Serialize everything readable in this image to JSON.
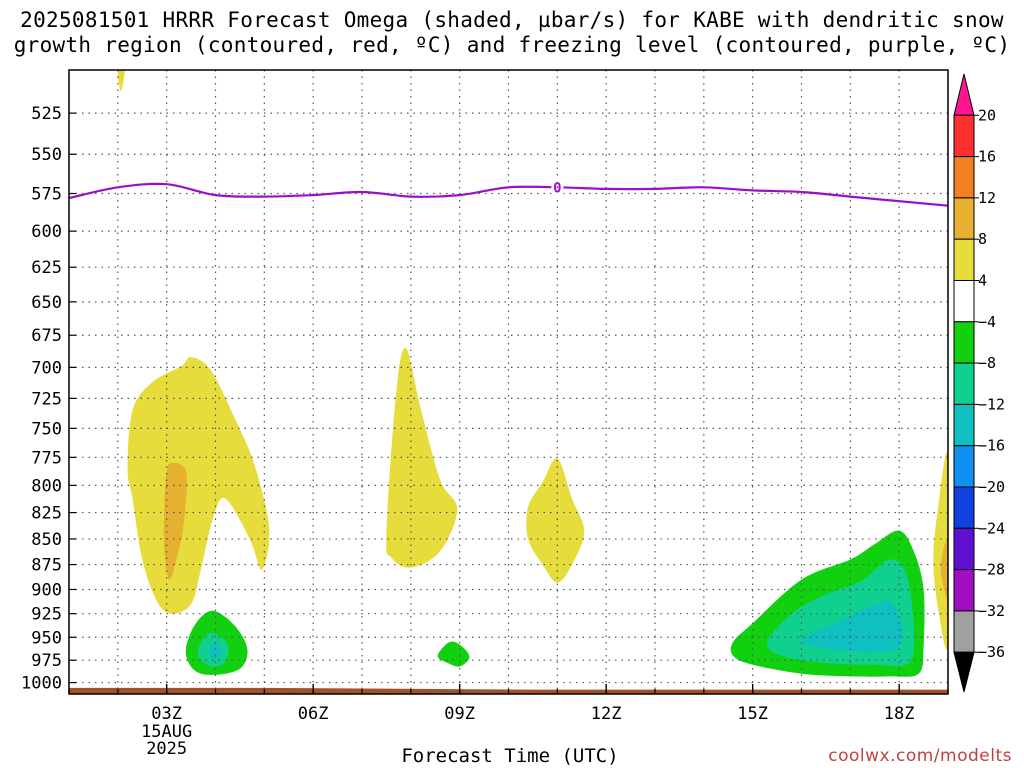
{
  "chart_data": {
    "type": "heatmap",
    "title_line1": "2025081501 HRRR Forecast Omega (shaded, µbar/s) for KABE with dendritic snow",
    "title_line2": "growth region (contoured, red, ºC) and freezing level (contoured, purple, ºC)",
    "xlabel": "Forecast Time (UTC)",
    "x_ticks": [
      "03Z",
      "06Z",
      "09Z",
      "12Z",
      "15Z",
      "18Z"
    ],
    "x_tick_hours": [
      3,
      6,
      9,
      12,
      15,
      18
    ],
    "x_date_label": [
      "15AUG",
      "2025"
    ],
    "xlim_hours": [
      1,
      19
    ],
    "y_ticks": [
      525,
      550,
      575,
      600,
      625,
      650,
      675,
      700,
      725,
      750,
      775,
      800,
      825,
      850,
      875,
      900,
      925,
      950,
      975,
      1000
    ],
    "ylim_hPa": [
      500,
      1013
    ],
    "y_scale": "log-pressure, inverted",
    "grid": true,
    "freezing_level": {
      "label": "0",
      "color": "#9a10c8",
      "hours": [
        1,
        2,
        3,
        4,
        5,
        6,
        7,
        8,
        9,
        10,
        11,
        12,
        13,
        14,
        15,
        16,
        17,
        18,
        19
      ],
      "pressure": [
        578,
        571,
        569,
        576,
        577,
        576,
        574,
        577,
        576,
        571,
        571,
        572,
        572,
        571,
        573,
        574,
        577,
        580,
        583
      ]
    },
    "surface": {
      "color": "#a0522d",
      "pressure": [
        1006,
        1006,
        1008,
        1008
      ]
    },
    "colorbar": {
      "labels": [
        "20",
        "16",
        "12",
        "8",
        "4",
        "−4",
        "−8",
        "−12",
        "−16",
        "−20",
        "−24",
        "−28",
        "−32",
        "−36"
      ],
      "colors": [
        "#ff1493",
        "#ff3030",
        "#f08020",
        "#e6b030",
        "#e6dc3c",
        "#ffffff",
        "#10d010",
        "#10d090",
        "#10c0c0",
        "#1090f0",
        "#1040e0",
        "#6010d0",
        "#a010c0",
        "#a0a0a0",
        "#000000"
      ]
    },
    "regions": [
      {
        "name": "yellow-north-top",
        "color": "#e6dc3c",
        "points": [
          [
            2.0,
            500
          ],
          [
            2.06,
            512
          ],
          [
            2.14,
            500
          ]
        ]
      },
      {
        "name": "yellow-west",
        "color": "#e6dc3c",
        "points": [
          [
            2.2,
            785
          ],
          [
            2.3,
            735
          ],
          [
            2.7,
            712
          ],
          [
            3.3,
            699
          ],
          [
            3.5,
            692
          ],
          [
            3.9,
            702
          ],
          [
            4.4,
            742
          ],
          [
            4.8,
            782
          ],
          [
            5.1,
            840
          ],
          [
            4.95,
            880
          ],
          [
            4.7,
            850
          ],
          [
            4.2,
            812
          ],
          [
            3.95,
            830
          ],
          [
            3.7,
            880
          ],
          [
            3.5,
            915
          ],
          [
            3.1,
            925
          ],
          [
            2.8,
            912
          ],
          [
            2.5,
            870
          ],
          [
            2.3,
            812
          ]
        ]
      },
      {
        "name": "orange-west",
        "color": "#e6b030",
        "points": [
          [
            2.95,
            820
          ],
          [
            3.0,
            788
          ],
          [
            3.1,
            780
          ],
          [
            3.4,
            788
          ],
          [
            3.35,
            835
          ],
          [
            3.2,
            870
          ],
          [
            3.05,
            890
          ],
          [
            2.95,
            860
          ]
        ]
      },
      {
        "name": "yellow-mid",
        "color": "#e6dc3c",
        "points": [
          [
            7.5,
            845
          ],
          [
            7.7,
            720
          ],
          [
            7.9,
            685
          ],
          [
            8.2,
            733
          ],
          [
            8.6,
            795
          ],
          [
            8.95,
            822
          ],
          [
            8.6,
            862
          ],
          [
            8.0,
            878
          ],
          [
            7.6,
            868
          ]
        ]
      },
      {
        "name": "yellow-east",
        "color": "#e6dc3c",
        "points": [
          [
            10.4,
            820
          ],
          [
            10.7,
            797
          ],
          [
            11.0,
            776
          ],
          [
            11.3,
            812
          ],
          [
            11.55,
            843
          ],
          [
            11.3,
            875
          ],
          [
            11.0,
            893
          ],
          [
            10.7,
            875
          ],
          [
            10.4,
            850
          ]
        ]
      },
      {
        "name": "yellow-edge",
        "color": "#e6dc3c",
        "points": [
          [
            19.0,
            775
          ],
          [
            18.8,
            820
          ],
          [
            18.7,
            870
          ],
          [
            18.8,
            920
          ],
          [
            19.0,
            955
          ]
        ]
      },
      {
        "name": "orange-edge",
        "color": "#e6b030",
        "points": [
          [
            19.0,
            850
          ],
          [
            18.85,
            878
          ],
          [
            19.0,
            910
          ]
        ]
      },
      {
        "name": "green-west",
        "color": "#10d010",
        "points": [
          [
            3.4,
            960
          ],
          [
            3.6,
            935
          ],
          [
            3.95,
            922
          ],
          [
            4.4,
            938
          ],
          [
            4.65,
            962
          ],
          [
            4.55,
            982
          ],
          [
            4.2,
            990
          ],
          [
            3.7,
            990
          ],
          [
            3.45,
            978
          ]
        ]
      },
      {
        "name": "teal-west",
        "color": "#10d090",
        "points": [
          [
            3.65,
            962
          ],
          [
            3.9,
            945
          ],
          [
            4.25,
            958
          ],
          [
            4.2,
            977
          ],
          [
            3.95,
            982
          ],
          [
            3.7,
            975
          ]
        ]
      },
      {
        "name": "cyan-west",
        "color": "#10c0c0",
        "points": [
          [
            3.88,
            963
          ],
          [
            4.0,
            955
          ],
          [
            4.12,
            965
          ],
          [
            4.02,
            974
          ],
          [
            3.9,
            972
          ]
        ]
      },
      {
        "name": "green-mid",
        "color": "#10d010",
        "points": [
          [
            8.55,
            970
          ],
          [
            8.8,
            955
          ],
          [
            9.05,
            960
          ],
          [
            9.2,
            972
          ],
          [
            9.0,
            982
          ],
          [
            8.75,
            978
          ]
        ]
      },
      {
        "name": "green-east",
        "color": "#10d010",
        "points": [
          [
            14.6,
            955
          ],
          [
            15.0,
            935
          ],
          [
            16.0,
            890
          ],
          [
            17.0,
            870
          ],
          [
            17.5,
            855
          ],
          [
            18.0,
            842
          ],
          [
            18.3,
            862
          ],
          [
            18.5,
            900
          ],
          [
            18.5,
            960
          ],
          [
            18.4,
            990
          ],
          [
            17.8,
            993
          ],
          [
            17.0,
            993
          ],
          [
            16.0,
            990
          ],
          [
            15.0,
            980
          ],
          [
            14.6,
            970
          ]
        ]
      },
      {
        "name": "teal-east",
        "color": "#10d090",
        "points": [
          [
            15.3,
            955
          ],
          [
            15.8,
            925
          ],
          [
            16.5,
            905
          ],
          [
            17.2,
            892
          ],
          [
            17.8,
            870
          ],
          [
            18.15,
            885
          ],
          [
            18.3,
            940
          ],
          [
            18.2,
            978
          ],
          [
            17.5,
            980
          ],
          [
            16.5,
            978
          ],
          [
            15.6,
            970
          ]
        ]
      },
      {
        "name": "cyan-east",
        "color": "#10c0c0",
        "points": [
          [
            16.0,
            953
          ],
          [
            16.7,
            935
          ],
          [
            17.4,
            918
          ],
          [
            17.8,
            912
          ],
          [
            18.05,
            935
          ],
          [
            18.0,
            960
          ],
          [
            17.4,
            966
          ],
          [
            16.5,
            962
          ]
        ]
      }
    ]
  }
}
